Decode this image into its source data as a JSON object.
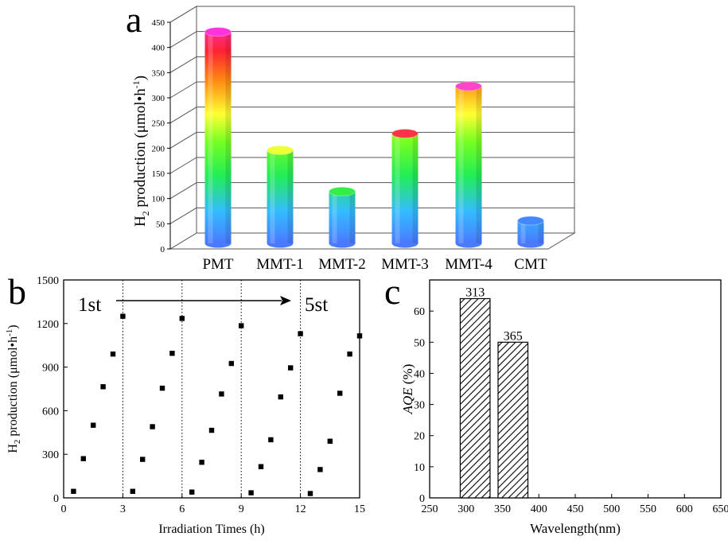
{
  "chart_data": [
    {
      "panel_label": "a",
      "type": "bar",
      "style": "3d-cylinder",
      "ylabel_main": "H",
      "ylabel_sub": "2",
      "ylabel_rest": " production (μmol•h",
      "ylabel_sup": "-1",
      "ylabel_end": ")",
      "ylim": [
        0,
        450
      ],
      "yticks": [
        0,
        50,
        100,
        150,
        200,
        250,
        300,
        350,
        400,
        450
      ],
      "categories": [
        "PMT",
        "MMT-1",
        "MMT-2",
        "MMT-3",
        "MMT-4",
        "CMT"
      ],
      "values": [
        420,
        185,
        103,
        218,
        312,
        45
      ],
      "grid": true
    },
    {
      "panel_label": "b",
      "type": "scatter",
      "xlabel": "Irradiation Times (h)",
      "ylabel_main": "H",
      "ylabel_sub": "2",
      "ylabel_rest": " production (μmol•h",
      "ylabel_sup": "-1",
      "ylabel_end": ")",
      "xlim": [
        0,
        15
      ],
      "ylim": [
        0,
        1500
      ],
      "xticks": [
        0,
        3,
        6,
        9,
        12,
        15
      ],
      "yticks": [
        0,
        300,
        600,
        900,
        1200,
        1500
      ],
      "cycle_dividers": [
        3,
        6,
        9,
        12
      ],
      "annotation_start": "1st",
      "annotation_end": "5st",
      "x": [
        0.5,
        1.0,
        1.5,
        2.0,
        2.5,
        3.0,
        3.5,
        4.0,
        4.5,
        5.0,
        5.5,
        6.0,
        6.5,
        7.0,
        7.5,
        8.0,
        8.5,
        9.0,
        9.5,
        10.0,
        10.5,
        11.0,
        11.5,
        12.0,
        12.5,
        13.0,
        13.5,
        14.0,
        14.5,
        15.0
      ],
      "y": [
        45,
        270,
        500,
        765,
        990,
        1250,
        45,
        265,
        490,
        755,
        995,
        1235,
        40,
        245,
        465,
        715,
        925,
        1185,
        35,
        215,
        400,
        695,
        895,
        1130,
        30,
        195,
        390,
        720,
        990,
        1115
      ]
    },
    {
      "panel_label": "c",
      "type": "bar",
      "style": "hatched",
      "xlabel": "Wavelength(nm)",
      "ylabel_italic": "AQE",
      "ylabel_rest": " (%)",
      "xlim": [
        250,
        650
      ],
      "ylim": [
        0,
        70
      ],
      "xticks": [
        250,
        300,
        350,
        400,
        450,
        500,
        550,
        600,
        650
      ],
      "yticks": [
        0,
        10,
        20,
        30,
        40,
        50,
        60
      ],
      "categories": [
        "313",
        "365"
      ],
      "bar_ranges": [
        [
          292,
          333
        ],
        [
          344,
          385
        ]
      ],
      "values": [
        64,
        50
      ]
    }
  ]
}
